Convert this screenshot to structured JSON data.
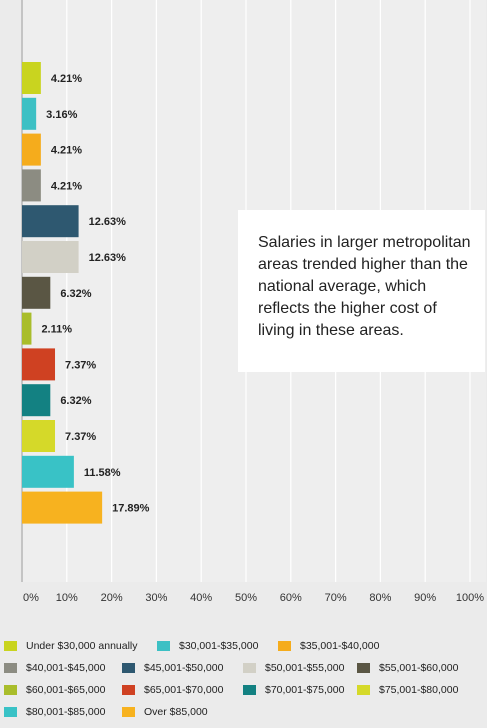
{
  "chart_data": {
    "type": "bar",
    "orientation": "horizontal",
    "xlim": [
      0,
      100
    ],
    "x_ticks": [
      "0%",
      "10%",
      "20%",
      "30%",
      "40%",
      "50%",
      "60%",
      "70%",
      "80%",
      "90%",
      "100%"
    ],
    "grid": true,
    "legend_position": "bottom",
    "series": [
      {
        "name": "Under $30,000 annually",
        "value": 4.21,
        "label": "4.21%",
        "color": "#c9d41f"
      },
      {
        "name": "$30,001-$35,000",
        "value": 3.16,
        "label": "3.16%",
        "color": "#3cc0c4"
      },
      {
        "name": "$35,001-$40,000",
        "value": 4.21,
        "label": "4.21%",
        "color": "#f5ac1c"
      },
      {
        "name": "$40,001-$45,000",
        "value": 4.21,
        "label": "4.21%",
        "color": "#8c8c82"
      },
      {
        "name": "$45,001-$50,000",
        "value": 12.63,
        "label": "12.63%",
        "color": "#2e5870"
      },
      {
        "name": "$50,001-$55,000",
        "value": 12.63,
        "label": "12.63%",
        "color": "#d2d0c6"
      },
      {
        "name": "$55,001-$60,000",
        "value": 6.32,
        "label": "6.32%",
        "color": "#5a5644"
      },
      {
        "name": "$60,001-$65,000",
        "value": 2.11,
        "label": "2.11%",
        "color": "#a9bd2b"
      },
      {
        "name": "$65,001-$70,000",
        "value": 7.37,
        "label": "7.37%",
        "color": "#cf4122"
      },
      {
        "name": "$70,001-$75,000",
        "value": 6.32,
        "label": "6.32%",
        "color": "#138182"
      },
      {
        "name": "$75,001-$80,000",
        "value": 7.37,
        "label": "7.37%",
        "color": "#d5d929"
      },
      {
        "name": "$80,001-$85,000",
        "value": 11.58,
        "label": "11.58%",
        "color": "#39c2c6"
      },
      {
        "name": "Over $85,000",
        "value": 17.89,
        "label": "17.89%",
        "color": "#f7b21f"
      }
    ],
    "annotation": "Salaries in larger metropolitan areas trended higher than the national average, which reflects the higher cost of living in these areas."
  }
}
